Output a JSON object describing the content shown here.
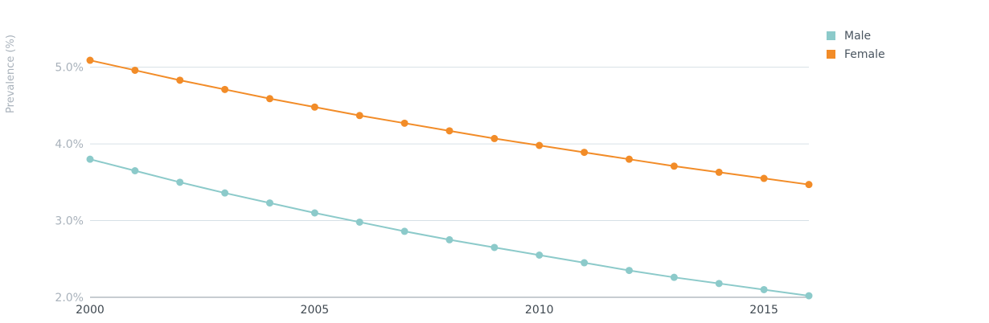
{
  "chart_data": {
    "type": "line",
    "title": "",
    "xlabel": "",
    "ylabel": "Prevalence (%)",
    "x": [
      2000,
      2001,
      2002,
      2003,
      2004,
      2005,
      2006,
      2007,
      2008,
      2009,
      2010,
      2011,
      2012,
      2013,
      2014,
      2015,
      2016
    ],
    "xlim": [
      2000,
      2016
    ],
    "ylim": [
      2.0,
      5.3
    ],
    "x_ticks": [
      2000,
      2005,
      2010,
      2015
    ],
    "x_tick_labels": [
      "2000",
      "2005",
      "2010",
      "2015"
    ],
    "y_ticks": [
      2.0,
      3.0,
      4.0,
      5.0
    ],
    "y_tick_labels": [
      "2.0%",
      "3.0%",
      "4.0%",
      "5.0%"
    ],
    "grid": true,
    "legend_position": "top-right",
    "series": [
      {
        "name": "Male",
        "color": "#8ccaca",
        "values": [
          3.8,
          3.65,
          3.5,
          3.36,
          3.23,
          3.1,
          2.98,
          2.86,
          2.75,
          2.65,
          2.55,
          2.45,
          2.35,
          2.26,
          2.18,
          2.1,
          2.02
        ]
      },
      {
        "name": "Female",
        "color": "#f28c28",
        "values": [
          5.09,
          4.96,
          4.83,
          4.71,
          4.59,
          4.48,
          4.37,
          4.27,
          4.17,
          4.07,
          3.98,
          3.89,
          3.8,
          3.71,
          3.63,
          3.55,
          3.47
        ]
      }
    ]
  }
}
